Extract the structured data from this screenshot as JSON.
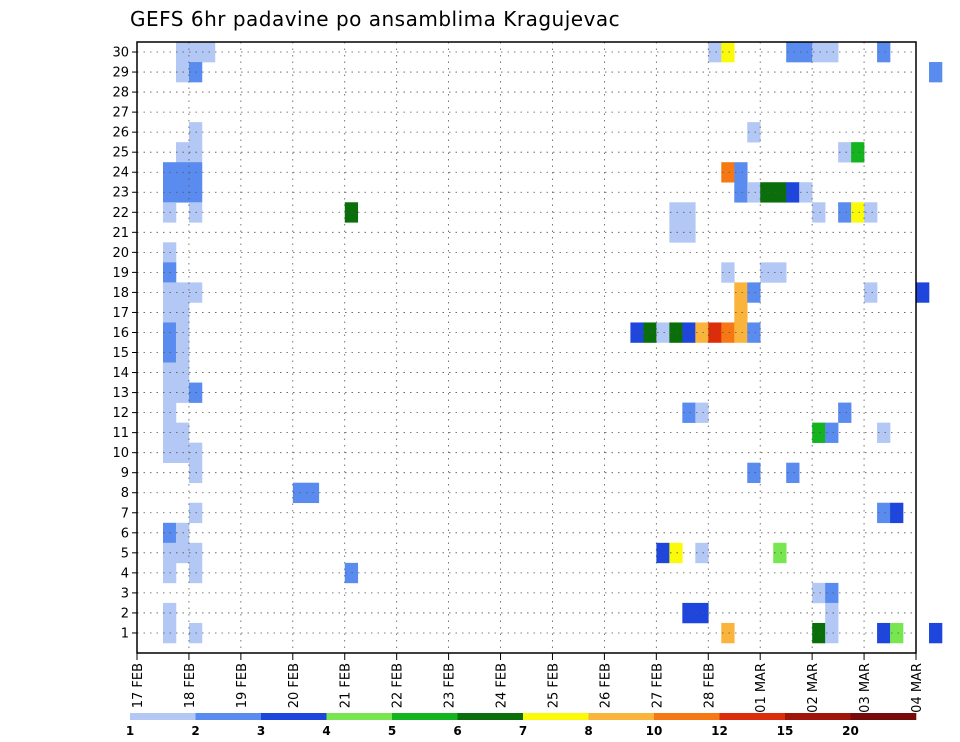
{
  "chart_data": {
    "type": "heatmap",
    "title": "GEFS 6hr padavine po ansamblima Kragujevac",
    "xlabel": "",
    "ylabel": "",
    "x_ticks": [
      "17 FEB",
      "18 FEB",
      "19 FEB",
      "20 FEB",
      "21 FEB",
      "22 FEB",
      "23 FEB",
      "24 FEB",
      "25 FEB",
      "26 FEB",
      "27 FEB",
      "28 FEB",
      "01 MAR",
      "02 MAR",
      "03 MAR",
      "04 MAR"
    ],
    "x_step_hours": 6,
    "y_ticks": [
      1,
      2,
      3,
      4,
      5,
      6,
      7,
      8,
      9,
      10,
      11,
      12,
      13,
      14,
      15,
      16,
      17,
      18,
      19,
      20,
      21,
      22,
      23,
      24,
      25,
      26,
      27,
      28,
      29,
      30
    ],
    "grid": true,
    "colorbar": {
      "tick_labels": [
        "1",
        "2",
        "3",
        "4",
        "5",
        "6",
        "7",
        "8",
        "10",
        "12",
        "15",
        "20"
      ],
      "colors": [
        "#b4c8f5",
        "#5a8cf0",
        "#1e46dc",
        "#78e650",
        "#14b41e",
        "#0a6e0a",
        "#fafa0a",
        "#fab43c",
        "#f57814",
        "#dc2d0a",
        "#a0140a",
        "#780a0a"
      ]
    },
    "columns_note": "x index = 6-hourly step from 17 FEB 00z; value = precipitation class index into colorbar.colors",
    "cells": [
      {
        "member": 30,
        "step": 1,
        "value": 0
      },
      {
        "member": 30,
        "step": 2,
        "value": 0
      },
      {
        "member": 30,
        "step": 3,
        "value": 0
      },
      {
        "member": 30,
        "step": 42,
        "value": 0
      },
      {
        "member": 30,
        "step": 43,
        "value": 6
      },
      {
        "member": 30,
        "step": 48,
        "value": 1
      },
      {
        "member": 30,
        "step": 49,
        "value": 1
      },
      {
        "member": 30,
        "step": 50,
        "value": 0
      },
      {
        "member": 30,
        "step": 51,
        "value": 0
      },
      {
        "member": 30,
        "step": 55,
        "value": 1
      },
      {
        "member": 29,
        "step": 1,
        "value": 0
      },
      {
        "member": 29,
        "step": 2,
        "value": 1
      },
      {
        "member": 29,
        "step": 59,
        "value": 1
      },
      {
        "member": 26,
        "step": 2,
        "value": 0
      },
      {
        "member": 26,
        "step": 45,
        "value": 0
      },
      {
        "member": 25,
        "step": 1,
        "value": 0
      },
      {
        "member": 25,
        "step": 2,
        "value": 0
      },
      {
        "member": 25,
        "step": 52,
        "value": 0
      },
      {
        "member": 25,
        "step": 53,
        "value": 4
      },
      {
        "member": 24,
        "step": 0,
        "value": 1
      },
      {
        "member": 24,
        "step": 1,
        "value": 1
      },
      {
        "member": 24,
        "step": 2,
        "value": 1
      },
      {
        "member": 24,
        "step": 43,
        "value": 8
      },
      {
        "member": 24,
        "step": 44,
        "value": 1
      },
      {
        "member": 23,
        "step": 0,
        "value": 1
      },
      {
        "member": 23,
        "step": 1,
        "value": 1
      },
      {
        "member": 23,
        "step": 2,
        "value": 1
      },
      {
        "member": 23,
        "step": 44,
        "value": 1
      },
      {
        "member": 23,
        "step": 45,
        "value": 0
      },
      {
        "member": 23,
        "step": 46,
        "value": 5
      },
      {
        "member": 23,
        "step": 47,
        "value": 5
      },
      {
        "member": 23,
        "step": 48,
        "value": 2
      },
      {
        "member": 23,
        "step": 49,
        "value": 0
      },
      {
        "member": 22,
        "step": 0,
        "value": 0
      },
      {
        "member": 22,
        "step": 2,
        "value": 0
      },
      {
        "member": 22,
        "step": 14,
        "value": 5
      },
      {
        "member": 22,
        "step": 39,
        "value": 0
      },
      {
        "member": 22,
        "step": 40,
        "value": 0
      },
      {
        "member": 22,
        "step": 50,
        "value": 0
      },
      {
        "member": 22,
        "step": 52,
        "value": 1
      },
      {
        "member": 22,
        "step": 53,
        "value": 6
      },
      {
        "member": 22,
        "step": 54,
        "value": 0
      },
      {
        "member": 21,
        "step": 39,
        "value": 0
      },
      {
        "member": 21,
        "step": 40,
        "value": 0
      },
      {
        "member": 20,
        "step": 0,
        "value": 0
      },
      {
        "member": 19,
        "step": 0,
        "value": 1
      },
      {
        "member": 19,
        "step": 43,
        "value": 0
      },
      {
        "member": 19,
        "step": 46,
        "value": 0
      },
      {
        "member": 19,
        "step": 47,
        "value": 0
      },
      {
        "member": 18,
        "step": 0,
        "value": 0
      },
      {
        "member": 18,
        "step": 1,
        "value": 0
      },
      {
        "member": 18,
        "step": 2,
        "value": 0
      },
      {
        "member": 18,
        "step": 44,
        "value": 7
      },
      {
        "member": 18,
        "step": 45,
        "value": 1
      },
      {
        "member": 18,
        "step": 54,
        "value": 0
      },
      {
        "member": 18,
        "step": 58,
        "value": 2
      },
      {
        "member": 17,
        "step": 0,
        "value": 0
      },
      {
        "member": 17,
        "step": 1,
        "value": 0
      },
      {
        "member": 17,
        "step": 44,
        "value": 7
      },
      {
        "member": 16,
        "step": 0,
        "value": 1
      },
      {
        "member": 16,
        "step": 1,
        "value": 0
      },
      {
        "member": 16,
        "step": 36,
        "value": 2
      },
      {
        "member": 16,
        "step": 37,
        "value": 5
      },
      {
        "member": 16,
        "step": 38,
        "value": 0
      },
      {
        "member": 16,
        "step": 39,
        "value": 5
      },
      {
        "member": 16,
        "step": 40,
        "value": 2
      },
      {
        "member": 16,
        "step": 41,
        "value": 7
      },
      {
        "member": 16,
        "step": 42,
        "value": 9
      },
      {
        "member": 16,
        "step": 43,
        "value": 8
      },
      {
        "member": 16,
        "step": 44,
        "value": 7
      },
      {
        "member": 16,
        "step": 45,
        "value": 1
      },
      {
        "member": 15,
        "step": 0,
        "value": 1
      },
      {
        "member": 15,
        "step": 1,
        "value": 0
      },
      {
        "member": 14,
        "step": 0,
        "value": 0
      },
      {
        "member": 14,
        "step": 1,
        "value": 0
      },
      {
        "member": 13,
        "step": 0,
        "value": 0
      },
      {
        "member": 13,
        "step": 1,
        "value": 0
      },
      {
        "member": 13,
        "step": 2,
        "value": 1
      },
      {
        "member": 12,
        "step": 0,
        "value": 0
      },
      {
        "member": 12,
        "step": 40,
        "value": 1
      },
      {
        "member": 12,
        "step": 41,
        "value": 0
      },
      {
        "member": 12,
        "step": 52,
        "value": 1
      },
      {
        "member": 11,
        "step": 0,
        "value": 0
      },
      {
        "member": 11,
        "step": 1,
        "value": 0
      },
      {
        "member": 11,
        "step": 50,
        "value": 4
      },
      {
        "member": 11,
        "step": 51,
        "value": 1
      },
      {
        "member": 11,
        "step": 55,
        "value": 0
      },
      {
        "member": 10,
        "step": 0,
        "value": 0
      },
      {
        "member": 10,
        "step": 1,
        "value": 0
      },
      {
        "member": 10,
        "step": 2,
        "value": 0
      },
      {
        "member": 9,
        "step": 2,
        "value": 0
      },
      {
        "member": 9,
        "step": 45,
        "value": 1
      },
      {
        "member": 9,
        "step": 48,
        "value": 1
      },
      {
        "member": 8,
        "step": 10,
        "value": 1
      },
      {
        "member": 8,
        "step": 11,
        "value": 1
      },
      {
        "member": 7,
        "step": 2,
        "value": 0
      },
      {
        "member": 7,
        "step": 55,
        "value": 1
      },
      {
        "member": 7,
        "step": 56,
        "value": 2
      },
      {
        "member": 6,
        "step": 0,
        "value": 1
      },
      {
        "member": 6,
        "step": 1,
        "value": 0
      },
      {
        "member": 5,
        "step": 0,
        "value": 0
      },
      {
        "member": 5,
        "step": 1,
        "value": 0
      },
      {
        "member": 5,
        "step": 2,
        "value": 0
      },
      {
        "member": 5,
        "step": 38,
        "value": 2
      },
      {
        "member": 5,
        "step": 39,
        "value": 6
      },
      {
        "member": 5,
        "step": 41,
        "value": 0
      },
      {
        "member": 5,
        "step": 47,
        "value": 3
      },
      {
        "member": 4,
        "step": 0,
        "value": 0
      },
      {
        "member": 4,
        "step": 2,
        "value": 0
      },
      {
        "member": 4,
        "step": 14,
        "value": 1
      },
      {
        "member": 3,
        "step": 50,
        "value": 0
      },
      {
        "member": 3,
        "step": 51,
        "value": 1
      },
      {
        "member": 2,
        "step": 0,
        "value": 0
      },
      {
        "member": 2,
        "step": 40,
        "value": 2
      },
      {
        "member": 2,
        "step": 41,
        "value": 2
      },
      {
        "member": 2,
        "step": 51,
        "value": 0
      },
      {
        "member": 1,
        "step": 0,
        "value": 0
      },
      {
        "member": 1,
        "step": 2,
        "value": 0
      },
      {
        "member": 1,
        "step": 43,
        "value": 7
      },
      {
        "member": 1,
        "step": 50,
        "value": 5
      },
      {
        "member": 1,
        "step": 51,
        "value": 0
      },
      {
        "member": 1,
        "step": 55,
        "value": 2
      },
      {
        "member": 1,
        "step": 56,
        "value": 3
      },
      {
        "member": 1,
        "step": 59,
        "value": 2
      }
    ]
  }
}
